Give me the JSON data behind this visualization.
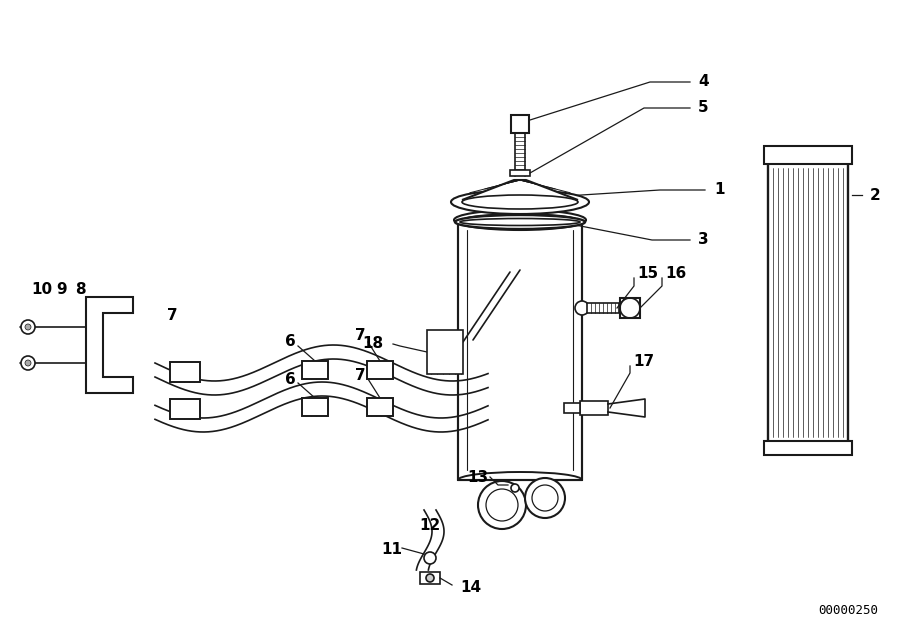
{
  "bg_color": "#ffffff",
  "line_color": "#1a1a1a",
  "label_color": "#000000",
  "diagram_code": "00000250"
}
